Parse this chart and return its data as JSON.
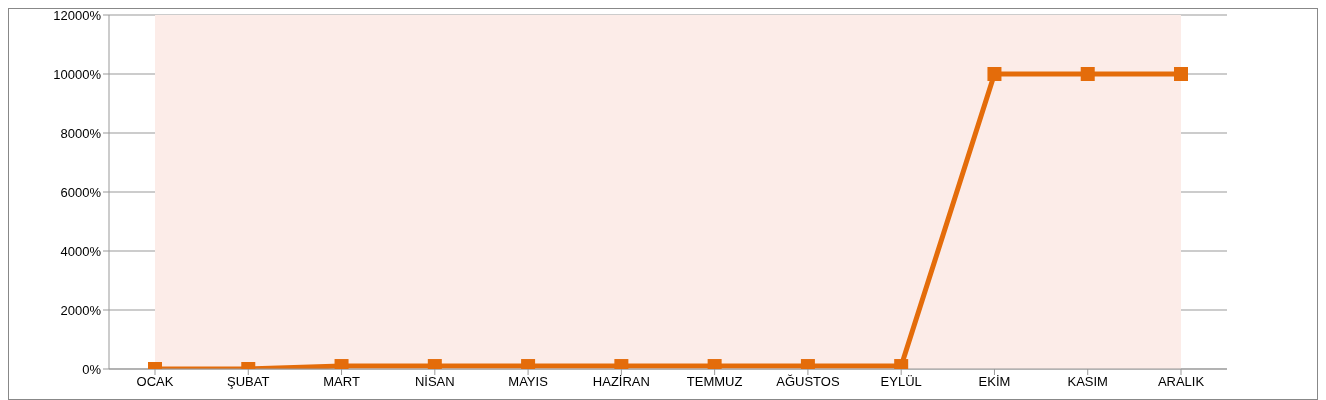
{
  "chart_data": {
    "type": "line",
    "categories": [
      "OCAK",
      "ŞUBAT",
      "MART",
      "NİSAN",
      "MAYIS",
      "HAZİRAN",
      "TEMMUZ",
      "AĞUSTOS",
      "EYLÜL",
      "EKİM",
      "KASIM",
      "ARALIK"
    ],
    "series": [
      {
        "color": "#e46c0a",
        "values": [
          0,
          0,
          100,
          100,
          100,
          100,
          100,
          100,
          100,
          10000,
          10000,
          10000
        ]
      }
    ],
    "ylim": [
      0,
      12000
    ],
    "yticks": [
      {
        "value": 0,
        "label": "0%"
      },
      {
        "value": 2000,
        "label": "2000%"
      },
      {
        "value": 4000,
        "label": "4000%"
      },
      {
        "value": 6000,
        "label": "6000%"
      },
      {
        "value": 8000,
        "label": "8000%"
      },
      {
        "value": 10000,
        "label": "10000%"
      },
      {
        "value": 12000,
        "label": "12000%"
      }
    ],
    "grid": "y",
    "marker": "square",
    "line_style": "solid",
    "legend": false
  }
}
